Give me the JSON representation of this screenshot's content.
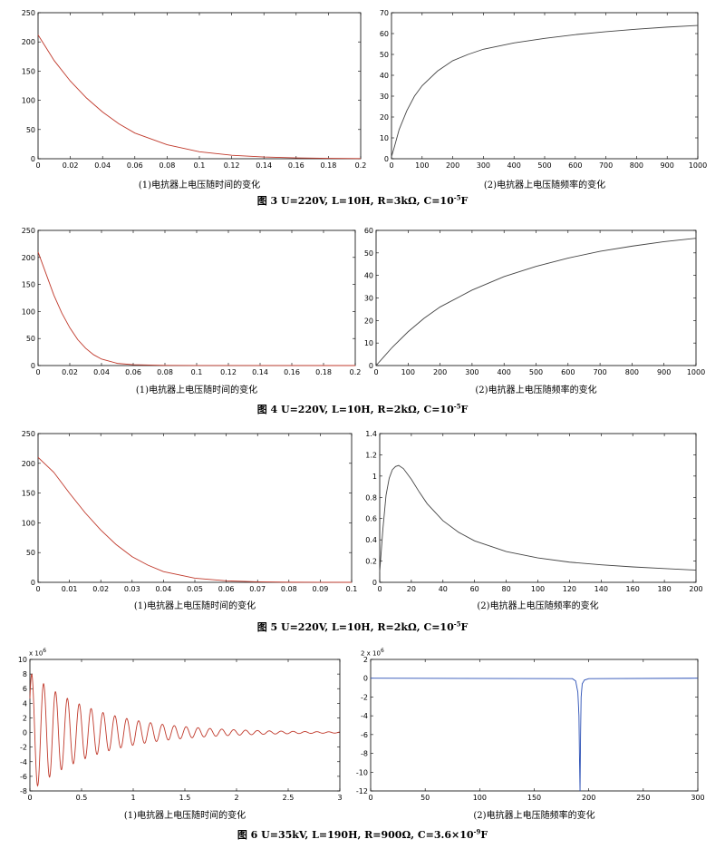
{
  "figures": [
    {
      "title": "图 3 U=220V, L=10H, R=3kΩ, C=10",
      "exp": "-5",
      "unit": "F"
    },
    {
      "title": "图 4 U=220V, L=10H, R=2kΩ, C=10",
      "exp": "-5",
      "unit": "F"
    },
    {
      "title": "图 5 U=220V, L=10H, R=2kΩ, C=10",
      "exp": "-5",
      "unit": "F"
    },
    {
      "title": "图 6 U=35kV, L=190H, R=900Ω, C=3.6×10",
      "exp": "-9",
      "unit": "F"
    }
  ],
  "captions": {
    "time": "(1)电抗器上电压随时间的变化",
    "freq": "(2)电抗器上电压随频率的变化",
    "freq_b": "(2)电抗器上电压随频率的变化"
  },
  "sci_labels": {
    "p7": {
      "base": "x 10",
      "exp": "6"
    },
    "p8": {
      "base": "2 x 10",
      "exp": "6"
    }
  },
  "colors": {
    "curve_red": "#c0392b",
    "curve_blue": "#2a4fb5",
    "curve_dark": "#444444",
    "axis": "#000000"
  },
  "chart_data": [
    {
      "id": "p1",
      "type": "line",
      "xlim": [
        0,
        0.2
      ],
      "ylim": [
        0,
        250
      ],
      "xticks": [
        "0",
        "0.02",
        "0.04",
        "0.06",
        "0.08",
        "0.1",
        "0.12",
        "0.14",
        "0.16",
        "0.18",
        "0.2"
      ],
      "yticks": [
        "0",
        "50",
        "100",
        "150",
        "200",
        "250"
      ],
      "series": [
        {
          "x": [
            0,
            0.005,
            0.01,
            0.02,
            0.03,
            0.04,
            0.05,
            0.06,
            0.08,
            0.1,
            0.12,
            0.14,
            0.16,
            0.18,
            0.2
          ],
          "y": [
            212,
            190,
            168,
            133,
            104,
            80,
            60,
            44,
            24,
            12,
            6,
            3,
            1.5,
            0.7,
            0.3
          ]
        }
      ]
    },
    {
      "id": "p2",
      "type": "line",
      "xlim": [
        0,
        1000
      ],
      "ylim": [
        0,
        70
      ],
      "xticks": [
        "0",
        "100",
        "200",
        "300",
        "400",
        "500",
        "600",
        "700",
        "800",
        "900",
        "1000"
      ],
      "yticks": [
        "0",
        "10",
        "20",
        "30",
        "40",
        "50",
        "60",
        "70"
      ],
      "series": [
        {
          "x": [
            0,
            10,
            25,
            50,
            75,
            100,
            150,
            200,
            250,
            300,
            400,
            500,
            600,
            700,
            800,
            900,
            1000
          ],
          "y": [
            1,
            6,
            14,
            23,
            30,
            35,
            42,
            47,
            50,
            52.5,
            55.5,
            57.7,
            59.5,
            60.9,
            62.1,
            63.1,
            63.9
          ]
        }
      ]
    },
    {
      "id": "p3",
      "type": "line",
      "xlim": [
        0,
        0.2
      ],
      "ylim": [
        0,
        250
      ],
      "xticks": [
        "0",
        "0.02",
        "0.04",
        "0.06",
        "0.08",
        "0.1",
        "0.12",
        "0.14",
        "0.16",
        "0.18",
        "0.2"
      ],
      "yticks": [
        "0",
        "50",
        "100",
        "150",
        "200",
        "250"
      ],
      "series": [
        {
          "x": [
            0,
            0.005,
            0.01,
            0.015,
            0.02,
            0.025,
            0.03,
            0.035,
            0.04,
            0.05,
            0.06,
            0.08,
            0.1,
            0.2
          ],
          "y": [
            210,
            170,
            130,
            97,
            70,
            48,
            32,
            20,
            12,
            4,
            1.5,
            0.3,
            0.1,
            0
          ]
        }
      ]
    },
    {
      "id": "p4",
      "type": "line",
      "xlim": [
        0,
        1000
      ],
      "ylim": [
        0,
        60
      ],
      "xticks": [
        "0",
        "100",
        "200",
        "300",
        "400",
        "500",
        "600",
        "700",
        "800",
        "900",
        "1000"
      ],
      "yticks": [
        "0",
        "10",
        "20",
        "30",
        "40",
        "50",
        "60"
      ],
      "series": [
        {
          "x": [
            0,
            25,
            50,
            100,
            150,
            200,
            300,
            400,
            500,
            600,
            700,
            800,
            900,
            1000
          ],
          "y": [
            0,
            4,
            8,
            15,
            21,
            26,
            33.5,
            39.5,
            44,
            47.7,
            50.7,
            53,
            55,
            56.5
          ]
        }
      ]
    },
    {
      "id": "p5",
      "type": "line",
      "xlim": [
        0,
        0.1
      ],
      "ylim": [
        0,
        250
      ],
      "xticks": [
        "0",
        "0.01",
        "0.02",
        "0.03",
        "0.04",
        "0.05",
        "0.06",
        "0.07",
        "0.08",
        "0.09",
        "0.1"
      ],
      "yticks": [
        "0",
        "50",
        "100",
        "150",
        "200",
        "250"
      ],
      "series": [
        {
          "x": [
            0,
            0.005,
            0.01,
            0.015,
            0.02,
            0.025,
            0.03,
            0.035,
            0.04,
            0.05,
            0.06,
            0.07,
            0.08,
            0.09,
            0.1
          ],
          "y": [
            210,
            185,
            150,
            117,
            88,
            63,
            43,
            29,
            18,
            7,
            2.5,
            0.8,
            0.2,
            0.05,
            0
          ]
        }
      ]
    },
    {
      "id": "p6",
      "type": "line",
      "xlim": [
        0,
        200
      ],
      "ylim": [
        0,
        1.4
      ],
      "xticks": [
        "0",
        "20",
        "40",
        "60",
        "80",
        "100",
        "120",
        "140",
        "160",
        "180",
        "200"
      ],
      "yticks": [
        "0",
        "0.2",
        "0.4",
        "0.6",
        "0.8",
        "1",
        "1.2",
        "1.4"
      ],
      "series": [
        {
          "x": [
            0,
            2,
            4,
            6,
            8,
            10,
            12,
            15,
            20,
            25,
            30,
            40,
            50,
            60,
            80,
            100,
            120,
            140,
            160,
            180,
            200
          ],
          "y": [
            0.1,
            0.5,
            0.82,
            0.98,
            1.06,
            1.09,
            1.1,
            1.07,
            0.97,
            0.85,
            0.74,
            0.58,
            0.47,
            0.39,
            0.29,
            0.23,
            0.19,
            0.165,
            0.145,
            0.13,
            0.115
          ]
        }
      ]
    },
    {
      "id": "p7",
      "type": "line",
      "xlim": [
        0,
        3
      ],
      "ylim": [
        -8,
        10
      ],
      "xticks": [
        "0",
        "0.5",
        "1",
        "1.5",
        "2",
        "2.5",
        "3"
      ],
      "yticks": [
        "-8",
        "-6",
        "-4",
        "-2",
        "0",
        "2",
        "4",
        "6",
        "8",
        "10"
      ],
      "series": [
        {
          "oscillation": {
            "amplitude": 8.2,
            "decay": 1.55,
            "period": 0.115,
            "t_end": 3
          }
        }
      ]
    },
    {
      "id": "p8",
      "type": "line",
      "xlim": [
        0,
        300
      ],
      "ylim": [
        -12,
        2
      ],
      "xticks": [
        "0",
        "50",
        "100",
        "150",
        "200",
        "250",
        "300"
      ],
      "yticks": [
        "-12",
        "-10",
        "-8",
        "-6",
        "-4",
        "-2",
        "0",
        "2"
      ],
      "series": [
        {
          "x": [
            0,
            185,
            188,
            190,
            191,
            191.5,
            192,
            192.5,
            193,
            194,
            196,
            200,
            300
          ],
          "y": [
            0,
            -0.05,
            -0.3,
            -1.5,
            -4,
            -8.5,
            -12,
            -6,
            -2,
            -0.6,
            -0.2,
            -0.05,
            0
          ]
        }
      ]
    }
  ]
}
